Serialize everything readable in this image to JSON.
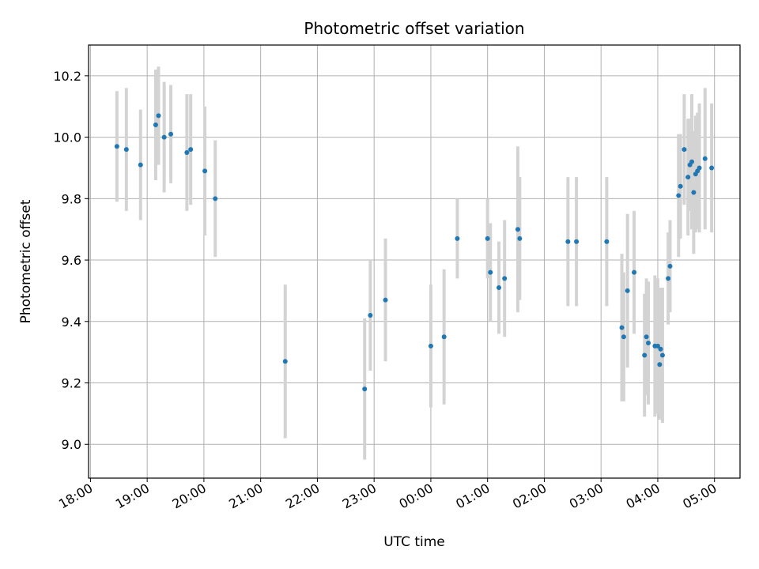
{
  "chart_data": {
    "type": "scatter",
    "title": "Photometric offset variation",
    "xlabel": "UTC time",
    "ylabel": "Photometric offset",
    "x_is_time": true,
    "xlim": [
      "17:58",
      "05:27+1"
    ],
    "ylim": [
      8.89,
      10.3
    ],
    "grid": true,
    "colors": {
      "point": "#1f77b4",
      "errorbar": "#d3d3d3",
      "grid": "#b0b0b0"
    },
    "x_ticks": [
      "18:00",
      "19:00",
      "20:00",
      "21:00",
      "22:00",
      "23:00",
      "00:00",
      "01:00",
      "02:00",
      "03:00",
      "04:00",
      "05:00"
    ],
    "y_ticks": [
      "9.0",
      "9.2",
      "9.4",
      "9.6",
      "9.8",
      "10.0",
      "10.2"
    ],
    "points": [
      {
        "x": "18:28",
        "y": 9.97,
        "yerr": 0.18
      },
      {
        "x": "18:38",
        "y": 9.96,
        "yerr": 0.2
      },
      {
        "x": "18:53",
        "y": 9.91,
        "yerr": 0.18
      },
      {
        "x": "19:09",
        "y": 10.04,
        "yerr": 0.18
      },
      {
        "x": "19:12",
        "y": 10.07,
        "yerr": 0.16
      },
      {
        "x": "19:18",
        "y": 10.0,
        "yerr": 0.18
      },
      {
        "x": "19:25",
        "y": 10.01,
        "yerr": 0.16
      },
      {
        "x": "19:42",
        "y": 9.95,
        "yerr": 0.19
      },
      {
        "x": "19:46",
        "y": 9.96,
        "yerr": 0.18
      },
      {
        "x": "20:01",
        "y": 9.89,
        "yerr": 0.21
      },
      {
        "x": "20:12",
        "y": 9.8,
        "yerr": 0.19
      },
      {
        "x": "21:26",
        "y": 9.27,
        "yerr": 0.25
      },
      {
        "x": "22:50",
        "y": 9.18,
        "yerr": 0.23
      },
      {
        "x": "22:56",
        "y": 9.42,
        "yerr": 0.18
      },
      {
        "x": "23:12",
        "y": 9.47,
        "yerr": 0.2
      },
      {
        "x": "00:00+1",
        "y": 9.32,
        "yerr": 0.2
      },
      {
        "x": "00:14+1",
        "y": 9.35,
        "yerr": 0.22
      },
      {
        "x": "00:28+1",
        "y": 9.67,
        "yerr": 0.13
      },
      {
        "x": "01:00+1",
        "y": 9.67,
        "yerr": 0.13
      },
      {
        "x": "01:03+1",
        "y": 9.56,
        "yerr": 0.16
      },
      {
        "x": "01:12+1",
        "y": 9.51,
        "yerr": 0.15
      },
      {
        "x": "01:18+1",
        "y": 9.54,
        "yerr": 0.19
      },
      {
        "x": "01:32+1",
        "y": 9.7,
        "yerr": 0.27
      },
      {
        "x": "01:34+1",
        "y": 9.67,
        "yerr": 0.2
      },
      {
        "x": "02:25+1",
        "y": 9.66,
        "yerr": 0.21
      },
      {
        "x": "02:34+1",
        "y": 9.66,
        "yerr": 0.21
      },
      {
        "x": "03:06+1",
        "y": 9.66,
        "yerr": 0.21
      },
      {
        "x": "03:22+1",
        "y": 9.38,
        "yerr": 0.24
      },
      {
        "x": "03:24+1",
        "y": 9.35,
        "yerr": 0.21
      },
      {
        "x": "03:28+1",
        "y": 9.5,
        "yerr": 0.25
      },
      {
        "x": "03:35+1",
        "y": 9.56,
        "yerr": 0.2
      },
      {
        "x": "03:46+1",
        "y": 9.29,
        "yerr": 0.2
      },
      {
        "x": "03:48+1",
        "y": 9.35,
        "yerr": 0.19
      },
      {
        "x": "03:50+1",
        "y": 9.33,
        "yerr": 0.2
      },
      {
        "x": "03:57+1",
        "y": 9.32,
        "yerr": 0.23
      },
      {
        "x": "04:00+1",
        "y": 9.32,
        "yerr": 0.22
      },
      {
        "x": "04:02+1",
        "y": 9.26,
        "yerr": 0.18
      },
      {
        "x": "04:03+1",
        "y": 9.31,
        "yerr": 0.2
      },
      {
        "x": "04:05+1",
        "y": 9.29,
        "yerr": 0.22
      },
      {
        "x": "04:11+1",
        "y": 9.54,
        "yerr": 0.15
      },
      {
        "x": "04:13+1",
        "y": 9.58,
        "yerr": 0.15
      },
      {
        "x": "04:22+1",
        "y": 9.81,
        "yerr": 0.2
      },
      {
        "x": "04:24+1",
        "y": 9.84,
        "yerr": 0.17
      },
      {
        "x": "04:28+1",
        "y": 9.96,
        "yerr": 0.18
      },
      {
        "x": "04:32+1",
        "y": 9.87,
        "yerr": 0.19
      },
      {
        "x": "04:34+1",
        "y": 9.91,
        "yerr": 0.15
      },
      {
        "x": "04:36+1",
        "y": 9.92,
        "yerr": 0.22
      },
      {
        "x": "04:38+1",
        "y": 9.82,
        "yerr": 0.2
      },
      {
        "x": "04:40+1",
        "y": 9.88,
        "yerr": 0.19
      },
      {
        "x": "04:42+1",
        "y": 9.89,
        "yerr": 0.19
      },
      {
        "x": "04:44+1",
        "y": 9.9,
        "yerr": 0.21
      },
      {
        "x": "04:50+1",
        "y": 9.93,
        "yerr": 0.23
      },
      {
        "x": "04:57+1",
        "y": 9.9,
        "yerr": 0.21
      }
    ]
  }
}
